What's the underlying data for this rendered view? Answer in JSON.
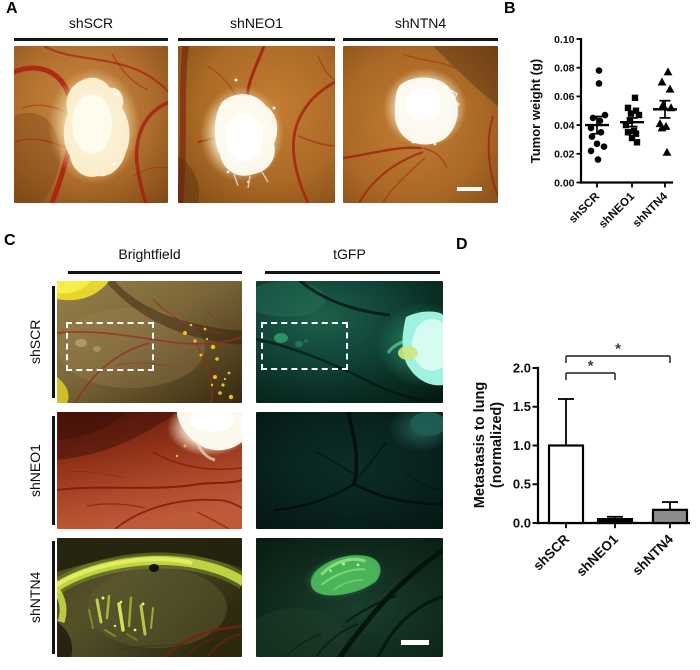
{
  "panels": {
    "A": {
      "label": "A",
      "image_titles": [
        "shSCR",
        "shNEO1",
        "shNTN4"
      ],
      "scale_bar": true
    },
    "B": {
      "label": "B"
    },
    "C": {
      "label": "C",
      "columns": [
        "Brightfield",
        "tGFP"
      ],
      "rows": [
        "shSCR",
        "shNEO1",
        "shNTN4"
      ],
      "roi_boxes": true,
      "scale_bar": true
    },
    "D": {
      "label": "D"
    }
  },
  "colors": {
    "axis": "#000000",
    "bracket": "#3d3d3d",
    "scale_bar": "#ffffff",
    "bar_white": "#ffffff",
    "bar_black": "#000000",
    "bar_gray": "#8c8c8c"
  },
  "chart_data": [
    {
      "type": "scatter",
      "panel": "B",
      "title": "",
      "xlabel": "",
      "ylabel": "Tumor weight (g)",
      "ylim": [
        0,
        0.1
      ],
      "yticks": [
        0,
        0.02,
        0.04,
        0.06,
        0.08,
        0.1
      ],
      "ytick_labels": [
        "0.00",
        "0.02",
        "0.04",
        "0.06",
        "0.08",
        "0.10"
      ],
      "categories": [
        "shSCR",
        "shNEO1",
        "shNTN4"
      ],
      "grid": false,
      "series": [
        {
          "name": "shSCR",
          "marker": "circle",
          "points": [
            [
              2,
              0.078
            ],
            [
              2,
              0.069
            ],
            [
              8,
              0.047
            ],
            [
              -4,
              0.045
            ],
            [
              3,
              0.043
            ],
            [
              -6,
              0.038
            ],
            [
              4,
              0.035
            ],
            [
              -5,
              0.032
            ],
            [
              0,
              0.027
            ],
            [
              7,
              0.025
            ],
            [
              -6,
              0.022
            ],
            [
              1,
              0.016
            ]
          ],
          "mean": 0.04,
          "sem": 0.006
        },
        {
          "name": "shNEO1",
          "marker": "square",
          "points": [
            [
              3,
              0.059
            ],
            [
              -4,
              0.052
            ],
            [
              4,
              0.05
            ],
            [
              -1,
              0.048
            ],
            [
              7,
              0.047
            ],
            [
              -2,
              0.043
            ],
            [
              -6,
              0.04
            ],
            [
              2,
              0.036
            ],
            [
              -4,
              0.035
            ],
            [
              4,
              0.034
            ],
            [
              0,
              0.031
            ],
            [
              5,
              0.028
            ]
          ],
          "mean": 0.042,
          "sem": 0.003
        },
        {
          "name": "shNTN4",
          "marker": "triangle",
          "points": [
            [
              3,
              0.077
            ],
            [
              -3,
              0.07
            ],
            [
              5,
              0.065
            ],
            [
              -2,
              0.054
            ],
            [
              6,
              0.052
            ],
            [
              -5,
              0.041
            ],
            [
              1,
              0.039
            ],
            [
              -3,
              0.038
            ],
            [
              2,
              0.021
            ]
          ],
          "mean": 0.051,
          "sem": 0.006
        }
      ]
    },
    {
      "type": "bar",
      "panel": "D",
      "title": "",
      "xlabel": "",
      "ylabel_lines": [
        "Metastasis to lung",
        "(normalized)"
      ],
      "ylim": [
        0,
        2.0
      ],
      "yticks": [
        0,
        0.5,
        1.0,
        1.5,
        2.0
      ],
      "ytick_labels": [
        "0.0",
        "0.5",
        "1.0",
        "1.5",
        "2.0"
      ],
      "categories": [
        "shSCR",
        "shNEO1",
        "shNTN4"
      ],
      "values": [
        1.0,
        0.05,
        0.17
      ],
      "errors": [
        0.6,
        0.03,
        0.1
      ],
      "bar_colors": [
        "#ffffff",
        "#000000",
        "#8c8c8c"
      ],
      "grid": false,
      "significance": [
        {
          "from": 0,
          "to": 1,
          "label": "*"
        },
        {
          "from": 0,
          "to": 2,
          "label": "*"
        }
      ]
    }
  ]
}
